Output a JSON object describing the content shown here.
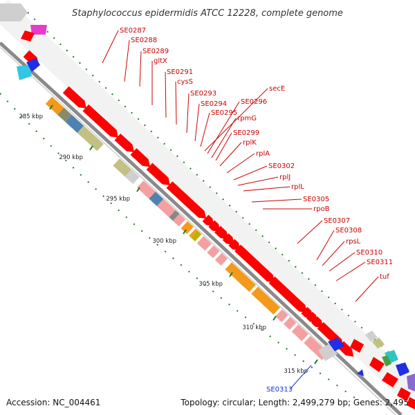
{
  "title": "Staphylococcus epidermidis ATCC 12228, complete genome",
  "accession": "Accession: NC_004461",
  "topology": "Topology: circular; Length: 2,499,279 bp; Genes: 2,495",
  "colors": {
    "cds": "#ff0000",
    "cds_light": "#f4a0a0",
    "backbone": "#888888",
    "tick": "#1a7a1a",
    "label": "#cc0000",
    "label_blue": "#1a2fcc",
    "orange": "#f39a1a",
    "olive": "#c2c083",
    "steelblue": "#4f81b3",
    "gray": "#cfcfcf",
    "magenta": "#e63cc8",
    "cyan": "#33c4e6",
    "blue": "#1f2fe6",
    "teal": "#33c4c0",
    "purple": "#8a6ad0"
  },
  "ticks": [
    "285 kbp",
    "290 kbp",
    "295 kbp",
    "300 kbp",
    "305 kbp",
    "310 kbp",
    "315 kbp"
  ],
  "genes": [
    {
      "name": "SE0287",
      "color": "red"
    },
    {
      "name": "SE0288",
      "color": "red"
    },
    {
      "name": "SE0289",
      "color": "red"
    },
    {
      "name": "gltX",
      "color": "red"
    },
    {
      "name": "SE0291",
      "color": "red"
    },
    {
      "name": "cysS",
      "color": "red"
    },
    {
      "name": "SE0293",
      "color": "red"
    },
    {
      "name": "SE0294",
      "color": "red"
    },
    {
      "name": "SE0295",
      "color": "red"
    },
    {
      "name": "secE",
      "color": "red"
    },
    {
      "name": "SE0296",
      "color": "red"
    },
    {
      "name": "rpmG",
      "color": "red"
    },
    {
      "name": "SE0299",
      "color": "red"
    },
    {
      "name": "rplK",
      "color": "red"
    },
    {
      "name": "rplA",
      "color": "red"
    },
    {
      "name": "SE0302",
      "color": "red"
    },
    {
      "name": "rplJ",
      "color": "red"
    },
    {
      "name": "rplL",
      "color": "red"
    },
    {
      "name": "SE0305",
      "color": "red"
    },
    {
      "name": "rpoB",
      "color": "red"
    },
    {
      "name": "SE0307",
      "color": "red"
    },
    {
      "name": "SE0308",
      "color": "red"
    },
    {
      "name": "rpsL",
      "color": "red"
    },
    {
      "name": "SE0310",
      "color": "red"
    },
    {
      "name": "SE0311",
      "color": "red"
    },
    {
      "name": "tuf",
      "color": "red"
    },
    {
      "name": "SE0313",
      "color": "blue"
    }
  ]
}
